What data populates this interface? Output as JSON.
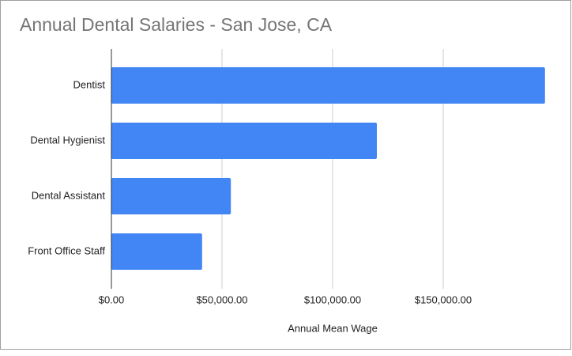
{
  "chart_data": {
    "type": "bar",
    "orientation": "horizontal",
    "title": "Annual Dental Salaries - San Jose, CA",
    "x_label": "Annual Mean Wage",
    "categories": [
      "Dentist",
      "Dental Hygienist",
      "Dental Assistant",
      "Front Office Staff"
    ],
    "values": [
      196000,
      120000,
      54000,
      41000
    ],
    "color": "#4285f4",
    "xlim": [
      0,
      200000
    ],
    "xticks": [
      {
        "value": 0,
        "label": "$0.00"
      },
      {
        "value": 50000,
        "label": "$50,000.00"
      },
      {
        "value": 100000,
        "label": "$100,000.00"
      },
      {
        "value": 150000,
        "label": "$150,000.00"
      }
    ],
    "grid": true
  }
}
